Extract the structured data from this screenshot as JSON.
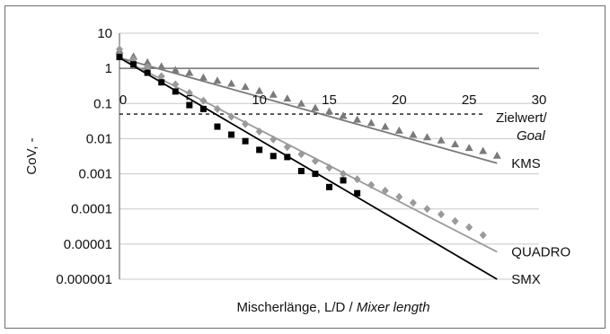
{
  "chart_data": {
    "type": "scatter",
    "title": "",
    "xlabel": "Mischerlänge, L/D /",
    "xlabel_italic": "Mixer length",
    "ylabel": "CoV, -",
    "xlim": [
      0,
      30
    ],
    "ylim": [
      1e-06,
      10
    ],
    "y_scale": "log",
    "x_ticks": [
      "0",
      "5",
      "10",
      "15",
      "20",
      "25",
      "30"
    ],
    "y_ticks": [
      "10",
      "1",
      "0.1",
      "0.01",
      "0.001",
      "0.0001",
      "0.00001",
      "0.000001"
    ],
    "grid": "horizontal",
    "goal": {
      "value": 0.05,
      "x_range": [
        0,
        25
      ],
      "label": "Zielwert/",
      "label_italic": "Goal"
    },
    "series": [
      {
        "name": "KMS",
        "color": "#7a7a7a",
        "marker": "triangle",
        "points": [
          [
            0,
            3.2
          ],
          [
            1,
            2.2
          ],
          [
            2,
            1.5
          ],
          [
            3,
            1.15
          ],
          [
            4,
            0.9
          ],
          [
            5,
            0.75
          ],
          [
            6,
            0.55
          ],
          [
            7,
            0.45
          ],
          [
            8,
            0.37
          ],
          [
            9,
            0.3
          ],
          [
            10,
            0.23
          ],
          [
            11,
            0.18
          ],
          [
            12,
            0.14
          ],
          [
            13,
            0.1
          ],
          [
            14,
            0.075
          ],
          [
            15,
            0.06
          ],
          [
            16,
            0.045
          ],
          [
            17,
            0.035
          ],
          [
            18,
            0.028
          ],
          [
            19,
            0.022
          ],
          [
            20,
            0.017
          ],
          [
            21,
            0.013
          ],
          [
            22,
            0.011
          ],
          [
            23,
            0.009
          ],
          [
            24,
            0.007
          ],
          [
            25,
            0.0055
          ],
          [
            26,
            0.0045
          ],
          [
            27,
            0.0033
          ]
        ],
        "trend": [
          [
            0,
            2.0
          ],
          [
            27,
            0.002
          ]
        ]
      },
      {
        "name": "QUADRO",
        "color": "#9a9a9a",
        "marker": "diamond",
        "points": [
          [
            0,
            3.5
          ],
          [
            1,
            1.8
          ],
          [
            2,
            1.1
          ],
          [
            3,
            0.6
          ],
          [
            4,
            0.35
          ],
          [
            5,
            0.2
          ],
          [
            6,
            0.12
          ],
          [
            7,
            0.07
          ],
          [
            8,
            0.042
          ],
          [
            9,
            0.026
          ],
          [
            10,
            0.016
          ],
          [
            11,
            0.0095
          ],
          [
            12,
            0.0058
          ],
          [
            13,
            0.0036
          ],
          [
            14,
            0.0023
          ],
          [
            15,
            0.0015
          ],
          [
            16,
            0.001
          ],
          [
            17,
            0.0007
          ],
          [
            18,
            0.00048
          ],
          [
            19,
            0.00033
          ],
          [
            20,
            0.00022
          ],
          [
            21,
            0.00015
          ],
          [
            22,
            0.0001
          ],
          [
            23,
            7e-05
          ],
          [
            24,
            4.5e-05
          ],
          [
            25,
            3e-05
          ],
          [
            26,
            1.8e-05
          ]
        ],
        "trend": [
          [
            0,
            2.0
          ],
          [
            27,
            6e-06
          ]
        ]
      },
      {
        "name": "SMX",
        "color": "#000000",
        "marker": "square",
        "points": [
          [
            0,
            2.1
          ],
          [
            1,
            1.3
          ],
          [
            2,
            0.75
          ],
          [
            3,
            0.4
          ],
          [
            4,
            0.22
          ],
          [
            5,
            0.09
          ],
          [
            6,
            0.07
          ],
          [
            7,
            0.022
          ],
          [
            8,
            0.013
          ],
          [
            9,
            0.0085
          ],
          [
            10,
            0.0048
          ],
          [
            11,
            0.0032
          ],
          [
            12,
            0.003
          ],
          [
            13,
            0.0012
          ],
          [
            14,
            0.001
          ],
          [
            15,
            0.00042
          ],
          [
            16,
            0.00065
          ],
          [
            17,
            0.00028
          ]
        ],
        "trend": [
          [
            0,
            2.0
          ],
          [
            27,
            1e-06
          ]
        ]
      }
    ]
  }
}
